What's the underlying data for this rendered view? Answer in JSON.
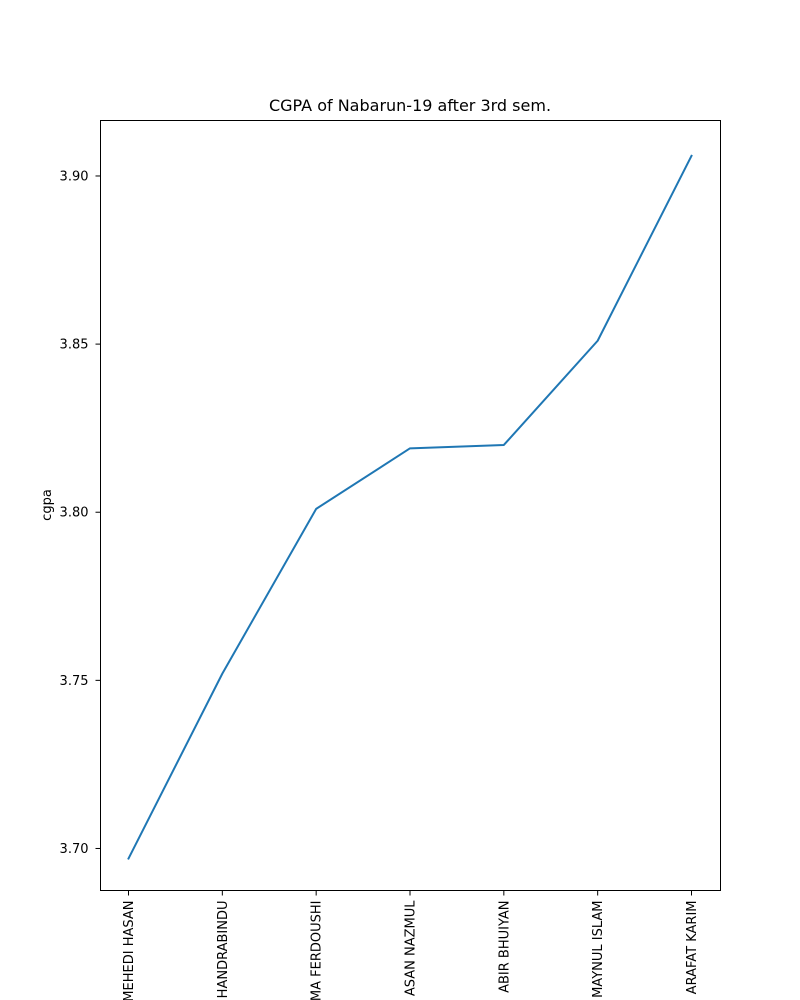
{
  "chart_data": {
    "type": "line",
    "title": "CGPA of Nabarun-19 after 3rd sem.",
    "xlabel": "",
    "ylabel": "cgpa",
    "categories": [
      "MEHEDI HASAN",
      "HANDRABINDU",
      "MA FERDOUSHI",
      "ASAN NAZMUL",
      "ABIR BHUIYAN",
      "MAYNUL ISLAM",
      "ARAFAT KARIM"
    ],
    "series": [
      {
        "values": [
          3.697,
          3.752,
          3.801,
          3.819,
          3.82,
          3.851,
          3.906
        ],
        "color": "#1f77b4"
      }
    ],
    "yticks": [
      "3.70",
      "3.75",
      "3.80",
      "3.85",
      "3.90"
    ],
    "ylim": [
      3.6875,
      3.9165
    ],
    "grid": false,
    "legend": "none"
  }
}
